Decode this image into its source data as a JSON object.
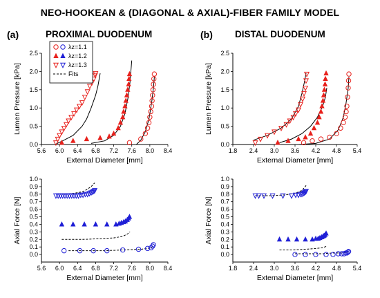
{
  "figure": {
    "title": "NEO-HOOKEAN & (DIAGONAL & AXIAL)-FIBER FAMILY MODEL",
    "panels": [
      {
        "letter": "(a)",
        "title": "PROXIMAL DUODENUM"
      },
      {
        "letter": "(b)",
        "title": "DISTAL DUODENUM"
      }
    ],
    "legend": [
      {
        "lambda": "1.1",
        "label": "λz=1.1"
      },
      {
        "lambda": "1.2",
        "label": "λz=1.2"
      },
      {
        "lambda": "1.3",
        "label": "λz=1.3"
      },
      {
        "label": "Fits"
      }
    ],
    "colors": {
      "red": "#e8211c",
      "blue": "#1f1fd6",
      "fit": "#000000"
    }
  },
  "chart_data": [
    {
      "id": "top-left",
      "type": "scatter",
      "xlabel": "External Diameter [mm]",
      "ylabel": "Lumen Pressure [kPa]",
      "xlim": [
        5.6,
        8.4
      ],
      "ylim": [
        0,
        2.5
      ],
      "xticks": [
        "5.6",
        "6.0",
        "6.4",
        "6.8",
        "7.2",
        "7.6",
        "8.0",
        "8.4"
      ],
      "yticks": [
        "0.0",
        "0.5",
        "1.0",
        "1.5",
        "2.0",
        "2.5"
      ],
      "series": [
        {
          "name": "λz=1.1",
          "marker": "circle-open",
          "color": "red",
          "x": [
            7.55,
            7.8,
            7.9,
            7.95,
            7.98,
            8.0,
            8.02,
            8.04,
            8.05,
            8.06,
            8.07,
            8.08,
            8.09,
            8.1
          ],
          "y": [
            0.05,
            0.15,
            0.3,
            0.45,
            0.6,
            0.75,
            0.9,
            1.05,
            1.2,
            1.35,
            1.5,
            1.65,
            1.8,
            1.93
          ]
        },
        {
          "name": "λz=1.2",
          "marker": "triangle-up-filled",
          "color": "red",
          "x": [
            6.05,
            6.3,
            6.6,
            6.9,
            7.1,
            7.2,
            7.3,
            7.35,
            7.4,
            7.42,
            7.45,
            7.47,
            7.49,
            7.51,
            7.53,
            7.54,
            7.55
          ],
          "y": [
            0.05,
            0.1,
            0.15,
            0.18,
            0.22,
            0.3,
            0.45,
            0.6,
            0.75,
            0.9,
            1.05,
            1.2,
            1.35,
            1.5,
            1.65,
            1.8,
            1.93
          ]
        },
        {
          "name": "λz=1.3",
          "marker": "triangle-down-open",
          "color": "red",
          "x": [
            5.92,
            5.96,
            6.0,
            6.05,
            6.1,
            6.15,
            6.2,
            6.26,
            6.32,
            6.38,
            6.44,
            6.5,
            6.56,
            6.62,
            6.67,
            6.72,
            6.76,
            6.79,
            6.8
          ],
          "y": [
            0.05,
            0.15,
            0.25,
            0.35,
            0.45,
            0.55,
            0.65,
            0.75,
            0.85,
            0.95,
            1.05,
            1.15,
            1.3,
            1.45,
            1.6,
            1.7,
            1.8,
            1.9,
            1.95
          ]
        }
      ],
      "fits": [
        {
          "x": [
            5.9,
            6.1,
            6.3,
            6.5,
            6.6,
            6.7,
            6.8,
            6.85,
            6.9
          ],
          "y": [
            0.0,
            0.12,
            0.25,
            0.5,
            0.7,
            1.0,
            1.35,
            1.6,
            1.95
          ]
        },
        {
          "x": [
            6.7,
            7.0,
            7.2,
            7.35,
            7.45,
            7.52,
            7.56,
            7.6
          ],
          "y": [
            0.03,
            0.1,
            0.25,
            0.5,
            0.85,
            1.3,
            1.7,
            2.3
          ]
        },
        {
          "x": [
            7.7,
            7.8,
            7.9,
            7.98,
            8.04,
            8.08,
            8.1
          ],
          "y": [
            0.0,
            0.12,
            0.35,
            0.7,
            1.15,
            1.55,
            1.85
          ]
        }
      ]
    },
    {
      "id": "top-right",
      "type": "scatter",
      "xlabel": "External Diameter [mm]",
      "ylabel": "Lumen Pressure [kPa]",
      "xlim": [
        1.8,
        5.4
      ],
      "ylim": [
        0,
        2.5
      ],
      "xticks": [
        "1.8",
        "2.4",
        "3.0",
        "3.6",
        "4.2",
        "4.8",
        "5.4"
      ],
      "yticks": [
        "0.0",
        "0.5",
        "1.0",
        "1.5",
        "2.0",
        "2.5"
      ],
      "series": [
        {
          "name": "λz=1.1",
          "marker": "circle-open",
          "color": "red",
          "x": [
            3.85,
            4.1,
            4.35,
            4.6,
            4.8,
            4.92,
            5.0,
            5.05,
            5.08,
            5.1,
            5.12,
            5.14,
            5.15,
            5.16
          ],
          "y": [
            0.05,
            0.1,
            0.15,
            0.2,
            0.3,
            0.45,
            0.6,
            0.75,
            0.9,
            1.05,
            1.3,
            1.55,
            1.75,
            1.93
          ]
        },
        {
          "name": "λz=1.2",
          "marker": "triangle-up-filled",
          "color": "red",
          "x": [
            3.1,
            3.4,
            3.7,
            3.9,
            4.05,
            4.15,
            4.25,
            4.3,
            4.35,
            4.38,
            4.41,
            4.43,
            4.45,
            4.47,
            4.48,
            4.5
          ],
          "y": [
            0.05,
            0.1,
            0.15,
            0.2,
            0.3,
            0.45,
            0.6,
            0.75,
            0.9,
            1.05,
            1.2,
            1.35,
            1.5,
            1.65,
            1.8,
            1.95
          ]
        },
        {
          "name": "λz=1.3",
          "marker": "triangle-down-open",
          "color": "red",
          "x": [
            2.45,
            2.6,
            2.8,
            3.0,
            3.2,
            3.35,
            3.45,
            3.55,
            3.62,
            3.7,
            3.76,
            3.82,
            3.86,
            3.9,
            3.92,
            3.94
          ],
          "y": [
            0.05,
            0.15,
            0.25,
            0.35,
            0.45,
            0.55,
            0.65,
            0.75,
            0.85,
            0.95,
            1.1,
            1.25,
            1.4,
            1.55,
            1.75,
            1.93
          ]
        }
      ],
      "fits": [
        {
          "x": [
            2.4,
            2.8,
            3.2,
            3.5,
            3.7,
            3.8,
            3.87,
            3.92
          ],
          "y": [
            0.12,
            0.25,
            0.45,
            0.7,
            1.05,
            1.4,
            1.7,
            1.95
          ]
        },
        {
          "x": [
            3.15,
            3.5,
            3.8,
            4.05,
            4.25,
            4.4,
            4.48,
            4.52
          ],
          "y": [
            0.05,
            0.15,
            0.3,
            0.5,
            0.75,
            1.05,
            1.3,
            1.55
          ]
        },
        {
          "x": [
            3.7,
            4.2,
            4.6,
            4.85,
            5.0,
            5.08,
            5.14,
            5.16
          ],
          "y": [
            0.0,
            0.03,
            0.15,
            0.4,
            0.75,
            1.15,
            1.55,
            1.85
          ]
        }
      ]
    },
    {
      "id": "bottom-left",
      "type": "scatter",
      "xlabel": "External Diameter [mm]",
      "ylabel": "Axial Force [N]",
      "xlim": [
        5.6,
        8.4
      ],
      "ylim": [
        -0.1,
        1.0
      ],
      "xticks": [
        "5.6",
        "6.0",
        "6.4",
        "6.8",
        "7.2",
        "7.6",
        "8.0",
        "8.4"
      ],
      "yticks": [
        "0.0",
        "0.1",
        "0.2",
        "0.3",
        "0.4",
        "0.5",
        "0.6",
        "0.7",
        "0.8",
        "0.9",
        "1.0"
      ],
      "series": [
        {
          "name": "λz=1.1",
          "marker": "circle-open",
          "color": "blue",
          "x": [
            6.1,
            6.45,
            6.75,
            7.05,
            7.4,
            7.75,
            7.95,
            8.03,
            8.06,
            8.08
          ],
          "y": [
            0.05,
            0.05,
            0.05,
            0.05,
            0.06,
            0.07,
            0.08,
            0.09,
            0.11,
            0.13
          ]
        },
        {
          "name": "λz=1.2",
          "marker": "triangle-up-filled",
          "color": "blue",
          "x": [
            6.05,
            6.3,
            6.55,
            6.8,
            7.05,
            7.25,
            7.32,
            7.37,
            7.42,
            7.46,
            7.5,
            7.53,
            7.55
          ],
          "y": [
            0.4,
            0.4,
            0.4,
            0.4,
            0.4,
            0.4,
            0.41,
            0.42,
            0.43,
            0.44,
            0.46,
            0.48,
            0.5
          ]
        },
        {
          "name": "λz=1.3",
          "marker": "triangle-down-open",
          "color": "blue",
          "x": [
            5.92,
            5.97,
            6.02,
            6.07,
            6.12,
            6.17,
            6.22,
            6.27,
            6.32,
            6.37,
            6.42,
            6.47,
            6.52,
            6.57,
            6.62,
            6.66,
            6.7,
            6.73,
            6.76,
            6.78
          ],
          "y": [
            0.78,
            0.78,
            0.78,
            0.78,
            0.78,
            0.78,
            0.78,
            0.78,
            0.78,
            0.78,
            0.78,
            0.79,
            0.79,
            0.8,
            0.8,
            0.81,
            0.82,
            0.83,
            0.84,
            0.85
          ]
        }
      ],
      "fits": [
        {
          "x": [
            6.2,
            6.6,
            7.0,
            7.4,
            7.8,
            7.95,
            8.05,
            8.1
          ],
          "y": [
            0.05,
            0.05,
            0.05,
            0.06,
            0.07,
            0.08,
            0.1,
            0.12
          ]
        },
        {
          "x": [
            6.05,
            6.5,
            6.9,
            7.2,
            7.4,
            7.5,
            7.56
          ],
          "y": [
            0.2,
            0.2,
            0.21,
            0.22,
            0.24,
            0.27,
            0.3
          ]
        },
        {
          "x": [
            6.05,
            6.3,
            6.5,
            6.6,
            6.7,
            6.78
          ],
          "y": [
            0.8,
            0.81,
            0.83,
            0.86,
            0.9,
            0.95
          ]
        }
      ]
    },
    {
      "id": "bottom-right",
      "type": "scatter",
      "xlabel": "External Diameter [mm]",
      "ylabel": "Axial Force [N]",
      "xlim": [
        1.8,
        5.4
      ],
      "ylim": [
        -0.1,
        1.0
      ],
      "xticks": [
        "1.8",
        "2.4",
        "3.0",
        "3.6",
        "4.2",
        "4.8",
        "5.4"
      ],
      "yticks": [
        "0.0",
        "0.1",
        "0.2",
        "0.3",
        "0.4",
        "0.5",
        "0.6",
        "0.7",
        "0.8",
        "0.9",
        "1.0"
      ],
      "series": [
        {
          "name": "λz=1.1",
          "marker": "circle-open",
          "color": "blue",
          "x": [
            3.6,
            3.9,
            4.2,
            4.5,
            4.7,
            4.85,
            4.95,
            5.02,
            5.07,
            5.1,
            5.13,
            5.15
          ],
          "y": [
            0.0,
            0.0,
            0.0,
            0.0,
            0.0,
            0.01,
            0.01,
            0.01,
            0.02,
            0.02,
            0.03,
            0.04
          ]
        },
        {
          "name": "λz=1.2",
          "marker": "triangle-up-filled",
          "color": "blue",
          "x": [
            3.15,
            3.4,
            3.65,
            3.9,
            4.1,
            4.2,
            4.27,
            4.32,
            4.37,
            4.41,
            4.44,
            4.47,
            4.5
          ],
          "y": [
            0.2,
            0.2,
            0.2,
            0.2,
            0.2,
            0.21,
            0.21,
            0.22,
            0.23,
            0.24,
            0.25,
            0.26,
            0.28
          ]
        },
        {
          "name": "λz=1.3",
          "marker": "triangle-down-open",
          "color": "blue",
          "x": [
            2.45,
            2.55,
            2.7,
            2.95,
            3.25,
            3.5,
            3.62,
            3.7,
            3.76,
            3.8,
            3.84,
            3.87,
            3.9,
            3.92
          ],
          "y": [
            0.78,
            0.78,
            0.78,
            0.78,
            0.78,
            0.78,
            0.79,
            0.79,
            0.8,
            0.8,
            0.81,
            0.82,
            0.83,
            0.84
          ]
        }
      ],
      "fits": [
        {
          "x": [
            3.6,
            4.0,
            4.4,
            4.7,
            4.95,
            5.1,
            5.16
          ],
          "y": [
            0.01,
            0.01,
            0.01,
            0.02,
            0.02,
            0.03,
            0.04
          ]
        },
        {
          "x": [
            3.15,
            3.5,
            3.9,
            4.2,
            4.4,
            4.52
          ],
          "y": [
            0.06,
            0.06,
            0.07,
            0.08,
            0.09,
            0.11
          ]
        },
        {
          "x": [
            2.45,
            2.9,
            3.3,
            3.6,
            3.8,
            3.93
          ],
          "y": [
            0.78,
            0.78,
            0.79,
            0.81,
            0.85,
            0.92
          ]
        }
      ]
    }
  ]
}
